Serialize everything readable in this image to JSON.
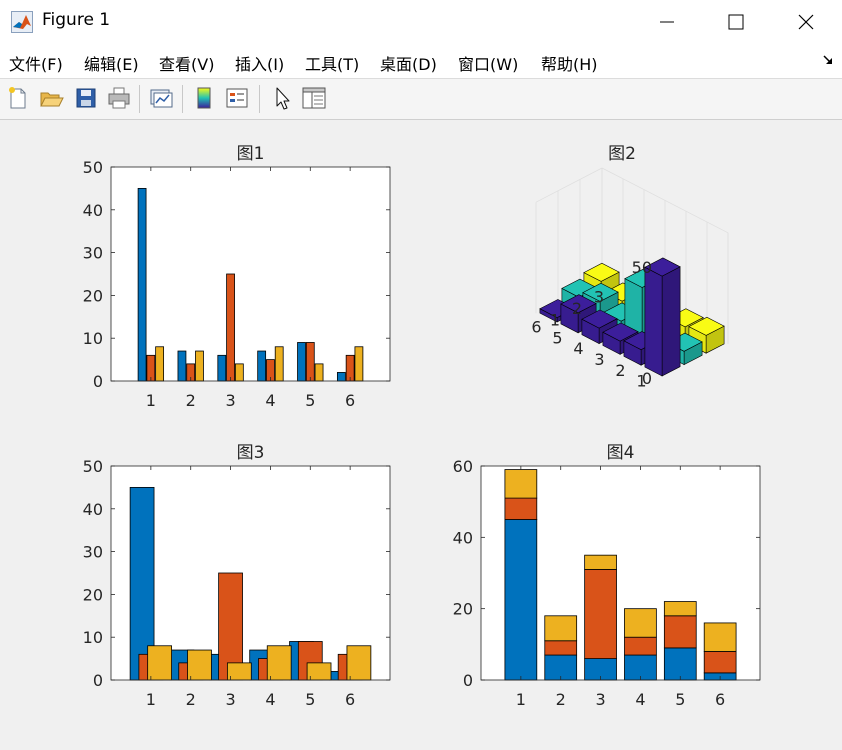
{
  "window": {
    "title": "Figure 1"
  },
  "menu": [
    "文件(F)",
    "编辑(E)",
    "查看(V)",
    "插入(I)",
    "工具(T)",
    "桌面(D)",
    "窗口(W)",
    "帮助(H)"
  ],
  "toolbar": {
    "buttons": [
      "new-figure",
      "open-file",
      "save",
      "print",
      "link-plot",
      "insert-colorbar",
      "insert-legend",
      "edit-plot",
      "open-property-inspector"
    ]
  },
  "colors": {
    "series1": "#0072bd",
    "series2": "#d95319",
    "series3": "#edb120",
    "bar3_rows": [
      "#3c1e9b",
      "#22c3b4",
      "#f9fb15"
    ]
  },
  "chart_data": [
    {
      "type": "bar",
      "title": "图1",
      "categories": [
        "1",
        "2",
        "3",
        "4",
        "5",
        "6"
      ],
      "series": [
        {
          "values": [
            45,
            7,
            6,
            7,
            9,
            2
          ]
        },
        {
          "values": [
            6,
            4,
            25,
            5,
            9,
            6
          ]
        },
        {
          "values": [
            8,
            7,
            4,
            8,
            4,
            8
          ]
        }
      ],
      "ylim": [
        0,
        50
      ],
      "yticks": [
        0,
        10,
        20,
        30,
        40,
        50
      ],
      "grouping": "grouped",
      "grid": false
    },
    {
      "type": "bar3",
      "title": "图2",
      "x_ticks": [
        "1",
        "2",
        "3",
        "4",
        "5",
        "6"
      ],
      "y_ticks": [
        "1",
        "2",
        "3"
      ],
      "z_ticks": [
        "0",
        "50"
      ],
      "zlim": [
        0,
        50
      ],
      "series": [
        {
          "values": [
            45,
            7,
            6,
            7,
            9,
            2
          ]
        },
        {
          "values": [
            6,
            4,
            25,
            5,
            9,
            6
          ]
        },
        {
          "values": [
            8,
            7,
            4,
            8,
            4,
            8
          ]
        }
      ],
      "grid": true
    },
    {
      "type": "bar",
      "title": "图3",
      "categories": [
        "1",
        "2",
        "3",
        "4",
        "5",
        "6"
      ],
      "series": [
        {
          "values": [
            45,
            7,
            6,
            7,
            9,
            2
          ]
        },
        {
          "values": [
            6,
            4,
            25,
            5,
            9,
            6
          ]
        },
        {
          "values": [
            8,
            7,
            4,
            8,
            4,
            8
          ]
        }
      ],
      "ylim": [
        0,
        50
      ],
      "yticks": [
        0,
        10,
        20,
        30,
        40,
        50
      ],
      "grouping": "overlapping",
      "grid": false
    },
    {
      "type": "bar",
      "title": "图4",
      "categories": [
        "1",
        "2",
        "3",
        "4",
        "5",
        "6"
      ],
      "series": [
        {
          "values": [
            45,
            7,
            6,
            7,
            9,
            2
          ]
        },
        {
          "values": [
            6,
            4,
            25,
            5,
            9,
            6
          ]
        },
        {
          "values": [
            8,
            7,
            4,
            8,
            4,
            8
          ]
        }
      ],
      "ylim": [
        0,
        60
      ],
      "yticks": [
        0,
        20,
        40,
        60
      ],
      "grouping": "stacked",
      "grid": false
    }
  ]
}
